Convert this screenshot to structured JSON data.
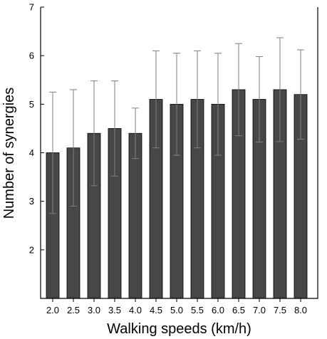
{
  "chart_data": {
    "type": "bar",
    "categories": [
      "2.0",
      "2.5",
      "3.0",
      "3.5",
      "4.0",
      "4.5",
      "5.0",
      "5.5",
      "6.0",
      "6.5",
      "7.0",
      "7.5",
      "8.0"
    ],
    "values": [
      4.0,
      4.1,
      4.4,
      4.5,
      4.4,
      5.1,
      5.0,
      5.1,
      5.0,
      5.3,
      5.1,
      5.3,
      5.2
    ],
    "error": [
      1.25,
      1.2,
      1.08,
      0.98,
      0.52,
      1.0,
      1.05,
      1.0,
      1.05,
      0.95,
      0.88,
      1.07,
      0.92
    ],
    "xlabel": "Walking speeds (km/h)",
    "ylabel": "Number of synergies",
    "ylim": [
      1,
      7
    ],
    "yticks": [
      2,
      3,
      4,
      5,
      6,
      7
    ],
    "grid": false,
    "bar_color": "#474747",
    "error_color": "#7f7f7f"
  }
}
